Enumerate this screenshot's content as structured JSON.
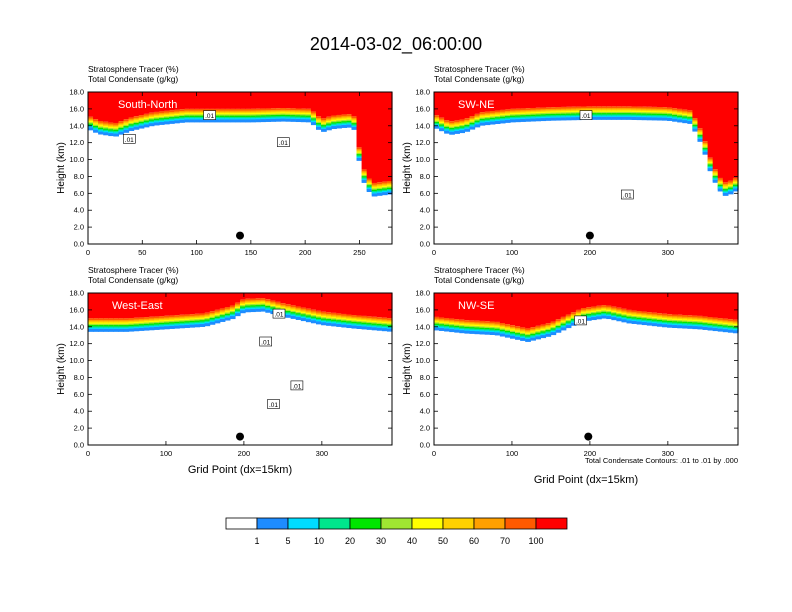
{
  "title": "2014-03-02_06:00:00",
  "colors": {
    "levels": [
      "#ffffff",
      "#1e8cff",
      "#00dcff",
      "#00e68c",
      "#00e600",
      "#a0e632",
      "#ffff00",
      "#ffd200",
      "#ffa000",
      "#ff5a00",
      "#ff0000"
    ],
    "contour": "#000000"
  },
  "chart_data": [
    {
      "type": "heatmap",
      "label": "South-North",
      "title_line1": "Stratosphere Tracer   (%)",
      "title_line2": "Total Condensate   (g/kg)",
      "ylabel": "Height (km)",
      "xlabel": "",
      "xlim": [
        0,
        280
      ],
      "ylim": [
        0,
        18
      ],
      "xticks": [
        0,
        50,
        100,
        150,
        200,
        250
      ],
      "yticks": [
        "0.0",
        "2.0",
        "4.0",
        "6.0",
        "8.0",
        "10.0",
        "12.0",
        "14.0",
        "16.0",
        "18.0"
      ],
      "tropopause_km": [
        [
          0,
          15.2
        ],
        [
          10,
          14.6
        ],
        [
          25,
          14.3
        ],
        [
          40,
          15.0
        ],
        [
          60,
          15.6
        ],
        [
          90,
          16.0
        ],
        [
          120,
          16.0
        ],
        [
          150,
          16.0
        ],
        [
          180,
          16.1
        ],
        [
          205,
          16.0
        ],
        [
          215,
          14.8
        ],
        [
          225,
          15.2
        ],
        [
          240,
          15.4
        ],
        [
          247,
          15.0
        ],
        [
          250,
          11.0
        ],
        [
          255,
          8.5
        ],
        [
          262,
          7.2
        ],
        [
          280,
          7.5
        ]
      ],
      "contour_labels": [
        {
          "x": 38,
          "y": 12.4,
          "text": ".01"
        },
        {
          "x": 112,
          "y": 15.2,
          "text": ".01"
        },
        {
          "x": 180,
          "y": 12.0,
          "text": ".01"
        }
      ],
      "marker": {
        "x": 140,
        "y": 1.0
      }
    },
    {
      "type": "heatmap",
      "label": "SW-NE",
      "title_line1": "Stratosphere Tracer   (%)",
      "title_line2": "Total Condensate   (g/kg)",
      "ylabel": "Height (km)",
      "xlabel": "",
      "xlim": [
        0,
        390
      ],
      "ylim": [
        0,
        18
      ],
      "xticks": [
        0,
        100,
        200,
        300
      ],
      "yticks": [
        "0.0",
        "2.0",
        "4.0",
        "6.0",
        "8.0",
        "10.0",
        "12.0",
        "14.0",
        "16.0",
        "18.0"
      ],
      "tropopause_km": [
        [
          0,
          15.4
        ],
        [
          20,
          14.5
        ],
        [
          40,
          14.8
        ],
        [
          60,
          15.6
        ],
        [
          100,
          16.0
        ],
        [
          150,
          16.2
        ],
        [
          200,
          16.3
        ],
        [
          250,
          16.3
        ],
        [
          300,
          16.2
        ],
        [
          330,
          15.8
        ],
        [
          345,
          13.0
        ],
        [
          355,
          10.0
        ],
        [
          365,
          8.0
        ],
        [
          375,
          7.2
        ],
        [
          390,
          8.0
        ]
      ],
      "contour_labels": [
        {
          "x": 195,
          "y": 15.2,
          "text": ".01"
        },
        {
          "x": 248,
          "y": 5.8,
          "text": ".01"
        }
      ],
      "marker": {
        "x": 200,
        "y": 1.0
      }
    },
    {
      "type": "heatmap",
      "label": "West-East",
      "title_line1": "Stratosphere Tracer   (%)",
      "title_line2": "Total Condensate   (g/kg)",
      "ylabel": "Height (km)",
      "xlabel": "Grid Point (dx=15km)",
      "xlim": [
        0,
        390
      ],
      "ylim": [
        0,
        18
      ],
      "xticks": [
        0,
        100,
        200,
        300
      ],
      "yticks": [
        "0.0",
        "2.0",
        "4.0",
        "6.0",
        "8.0",
        "10.0",
        "12.0",
        "14.0",
        "16.0",
        "18.0"
      ],
      "tropopause_km": [
        [
          0,
          15.0
        ],
        [
          50,
          15.0
        ],
        [
          100,
          15.3
        ],
        [
          150,
          15.6
        ],
        [
          185,
          16.5
        ],
        [
          200,
          17.3
        ],
        [
          225,
          17.4
        ],
        [
          250,
          16.8
        ],
        [
          275,
          16.3
        ],
        [
          300,
          15.8
        ],
        [
          340,
          15.4
        ],
        [
          390,
          15.0
        ]
      ],
      "contour_labels": [
        {
          "x": 245,
          "y": 15.5,
          "text": ".01"
        },
        {
          "x": 228,
          "y": 12.2,
          "text": ".01"
        },
        {
          "x": 268,
          "y": 7.0,
          "text": ".01"
        },
        {
          "x": 238,
          "y": 4.8,
          "text": ".01"
        }
      ],
      "marker": {
        "x": 195,
        "y": 1.0
      }
    },
    {
      "type": "heatmap",
      "label": "NW-SE",
      "title_line1": "Stratosphere Tracer   (%)",
      "title_line2": "Total Condensate   (g/kg)",
      "ylabel": "Height (km)",
      "xlabel": "Grid Point (dx=15km)",
      "xlim": [
        0,
        390
      ],
      "ylim": [
        0,
        18
      ],
      "xticks": [
        0,
        100,
        200,
        300
      ],
      "yticks": [
        "0.0",
        "2.0",
        "4.0",
        "6.0",
        "8.0",
        "10.0",
        "12.0",
        "14.0",
        "16.0",
        "18.0"
      ],
      "tropopause_km": [
        [
          0,
          15.2
        ],
        [
          40,
          14.8
        ],
        [
          80,
          14.6
        ],
        [
          120,
          13.8
        ],
        [
          150,
          14.5
        ],
        [
          190,
          16.2
        ],
        [
          220,
          16.6
        ],
        [
          250,
          16.0
        ],
        [
          300,
          15.5
        ],
        [
          340,
          15.3
        ],
        [
          390,
          14.8
        ]
      ],
      "contour_labels": [
        {
          "x": 188,
          "y": 14.7,
          "text": ".01"
        }
      ],
      "marker": {
        "x": 198,
        "y": 1.0
      },
      "footnote": "Total Condensate Contours: .01 to .01 by .000"
    }
  ],
  "colorbar": {
    "labels": [
      "1",
      "5",
      "10",
      "20",
      "30",
      "40",
      "50",
      "60",
      "70",
      "100"
    ]
  }
}
